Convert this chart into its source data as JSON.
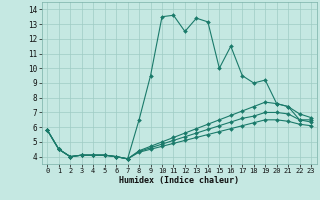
{
  "xlabel": "Humidex (Indice chaleur)",
  "xlim": [
    -0.5,
    23.5
  ],
  "ylim": [
    3.5,
    14.5
  ],
  "xticks": [
    0,
    1,
    2,
    3,
    4,
    5,
    6,
    7,
    8,
    9,
    10,
    11,
    12,
    13,
    14,
    15,
    16,
    17,
    18,
    19,
    20,
    21,
    22,
    23
  ],
  "yticks": [
    4,
    5,
    6,
    7,
    8,
    9,
    10,
    11,
    12,
    13,
    14
  ],
  "background_color": "#c5e8e2",
  "grid_color": "#9fccc4",
  "line_color": "#1a7a6a",
  "lines": [
    {
      "x": [
        0,
        1,
        2,
        3,
        4,
        5,
        6,
        7,
        8,
        9,
        10,
        11,
        12,
        13,
        14,
        15,
        16,
        17,
        18,
        19,
        20,
        21,
        22,
        23
      ],
      "y": [
        5.8,
        4.5,
        4.0,
        4.1,
        4.1,
        4.1,
        4.0,
        3.85,
        6.5,
        9.5,
        13.5,
        13.6,
        12.5,
        13.4,
        13.15,
        10.0,
        11.5,
        9.5,
        9.0,
        9.2,
        7.6,
        7.4,
        6.5,
        6.5
      ]
    },
    {
      "x": [
        0,
        1,
        2,
        3,
        4,
        5,
        6,
        7,
        8,
        9,
        10,
        11,
        12,
        13,
        14,
        15,
        16,
        17,
        18,
        19,
        20,
        21,
        22,
        23
      ],
      "y": [
        5.8,
        4.5,
        4.0,
        4.1,
        4.1,
        4.1,
        4.0,
        3.85,
        4.4,
        4.7,
        5.0,
        5.3,
        5.6,
        5.9,
        6.2,
        6.5,
        6.8,
        7.1,
        7.4,
        7.7,
        7.6,
        7.4,
        6.9,
        6.65
      ]
    },
    {
      "x": [
        0,
        1,
        2,
        3,
        4,
        5,
        6,
        7,
        8,
        9,
        10,
        11,
        12,
        13,
        14,
        15,
        16,
        17,
        18,
        19,
        20,
        21,
        22,
        23
      ],
      "y": [
        5.8,
        4.5,
        4.0,
        4.1,
        4.1,
        4.1,
        4.0,
        3.85,
        4.35,
        4.6,
        4.85,
        5.1,
        5.35,
        5.6,
        5.85,
        6.1,
        6.35,
        6.6,
        6.75,
        7.0,
        7.0,
        6.9,
        6.5,
        6.35
      ]
    },
    {
      "x": [
        0,
        1,
        2,
        3,
        4,
        5,
        6,
        7,
        8,
        9,
        10,
        11,
        12,
        13,
        14,
        15,
        16,
        17,
        18,
        19,
        20,
        21,
        22,
        23
      ],
      "y": [
        5.8,
        4.5,
        4.0,
        4.1,
        4.1,
        4.1,
        4.0,
        3.85,
        4.3,
        4.5,
        4.7,
        4.9,
        5.1,
        5.3,
        5.5,
        5.7,
        5.9,
        6.1,
        6.3,
        6.5,
        6.5,
        6.4,
        6.2,
        6.1
      ]
    }
  ]
}
